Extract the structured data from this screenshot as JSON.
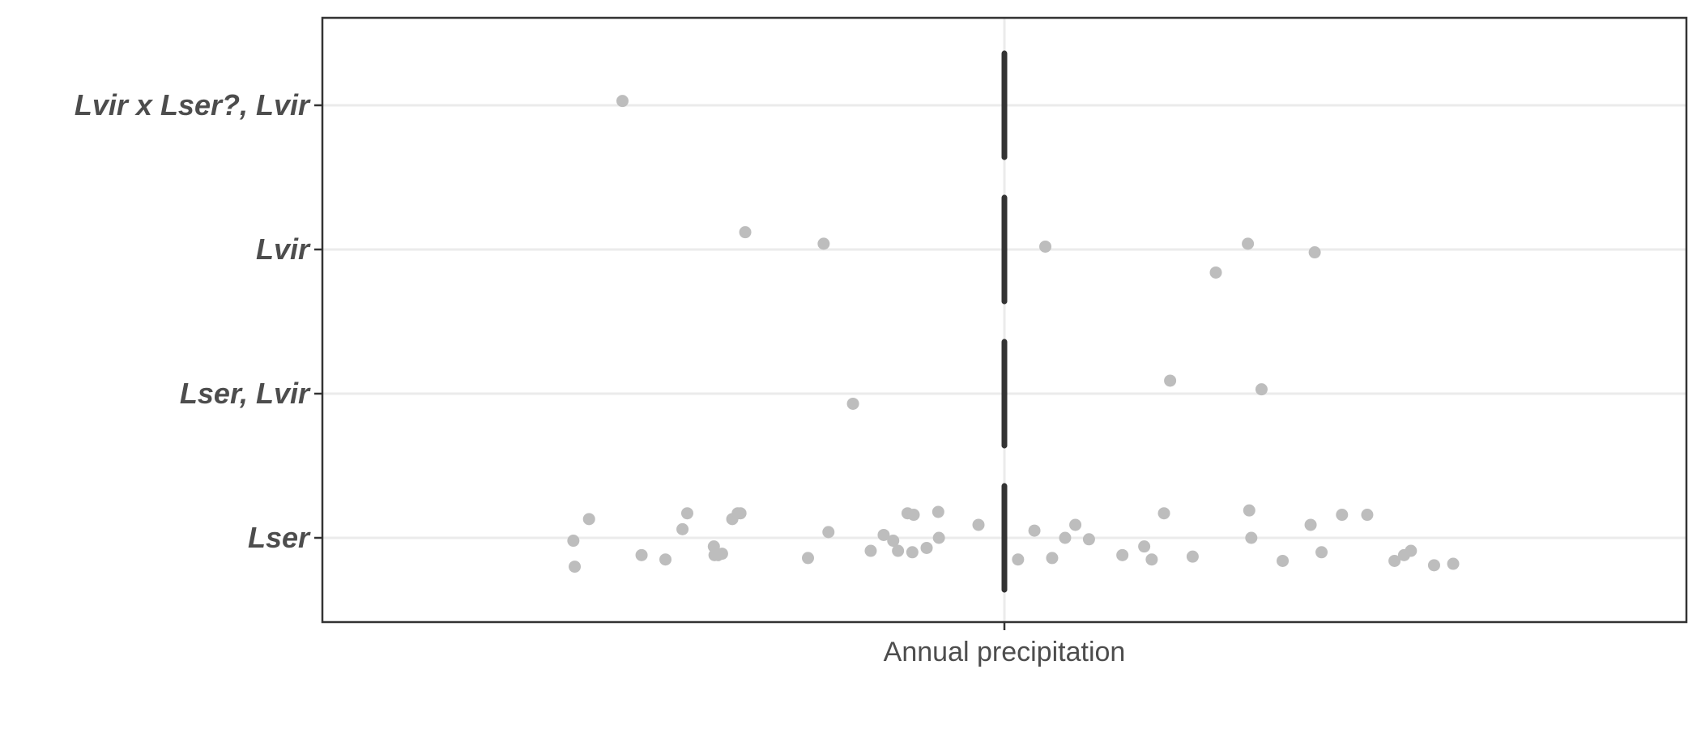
{
  "chart_data": {
    "type": "scatter",
    "title": "",
    "xlabel": "",
    "ylabel": "",
    "x_tick_labels": [
      "Annual precipitation"
    ],
    "categories": [
      "Lvir x Lser?, Lvir",
      "Lvir",
      "Lser, Lvir",
      "Lser"
    ],
    "xlim": [
      -1.0,
      1.0
    ],
    "grid": true,
    "legend": "none",
    "point_color": "#bdbdbd",
    "median_color": "#333333",
    "median_x": [
      0,
      0,
      0,
      0
    ],
    "series": [
      {
        "name": "",
        "category": "Lvir x Lser?, Lvir",
        "x": [
          -0.56
        ],
        "jitter": [
          0.03
        ]
      },
      {
        "name": "",
        "category": "Lvir",
        "x": [
          -0.38,
          -0.265,
          0.06,
          0.31,
          0.357,
          0.455
        ],
        "jitter": [
          0.12,
          0.04,
          0.02,
          -0.16,
          0.04,
          -0.02
        ]
      },
      {
        "name": "",
        "category": "Lser, Lvir",
        "x": [
          -0.222,
          0.243,
          0.377
        ],
        "jitter": [
          -0.07,
          0.09,
          0.03
        ]
      },
      {
        "name": "",
        "category": "Lser",
        "x": [
          -0.632,
          -0.63,
          -0.609,
          -0.532,
          -0.497,
          -0.472,
          -0.465,
          -0.426,
          -0.425,
          -0.42,
          -0.414,
          -0.399,
          -0.391,
          -0.387,
          -0.288,
          -0.258,
          -0.196,
          -0.177,
          -0.163,
          -0.156,
          -0.142,
          -0.135,
          -0.133,
          -0.114,
          -0.097,
          -0.096,
          -0.038,
          0.02,
          0.044,
          0.07,
          0.089,
          0.104,
          0.124,
          0.173,
          0.205,
          0.216,
          0.234,
          0.276,
          0.359,
          0.362,
          0.408,
          0.449,
          0.465,
          0.495,
          0.532,
          0.572,
          0.586,
          0.596,
          0.63,
          0.658
        ],
        "jitter": [
          -0.02,
          -0.2,
          0.13,
          -0.12,
          -0.15,
          0.06,
          0.17,
          -0.06,
          -0.12,
          -0.12,
          -0.11,
          0.13,
          0.17,
          0.17,
          -0.14,
          0.04,
          -0.09,
          0.02,
          -0.02,
          -0.09,
          0.17,
          -0.1,
          0.16,
          -0.07,
          0.18,
          0.0,
          0.09,
          -0.15,
          0.05,
          -0.14,
          0.0,
          0.09,
          -0.01,
          -0.12,
          -0.06,
          -0.15,
          0.17,
          -0.13,
          0.19,
          0.0,
          -0.16,
          0.09,
          -0.1,
          0.16,
          0.16,
          -0.16,
          -0.12,
          -0.09,
          -0.19,
          -0.18
        ]
      }
    ]
  }
}
